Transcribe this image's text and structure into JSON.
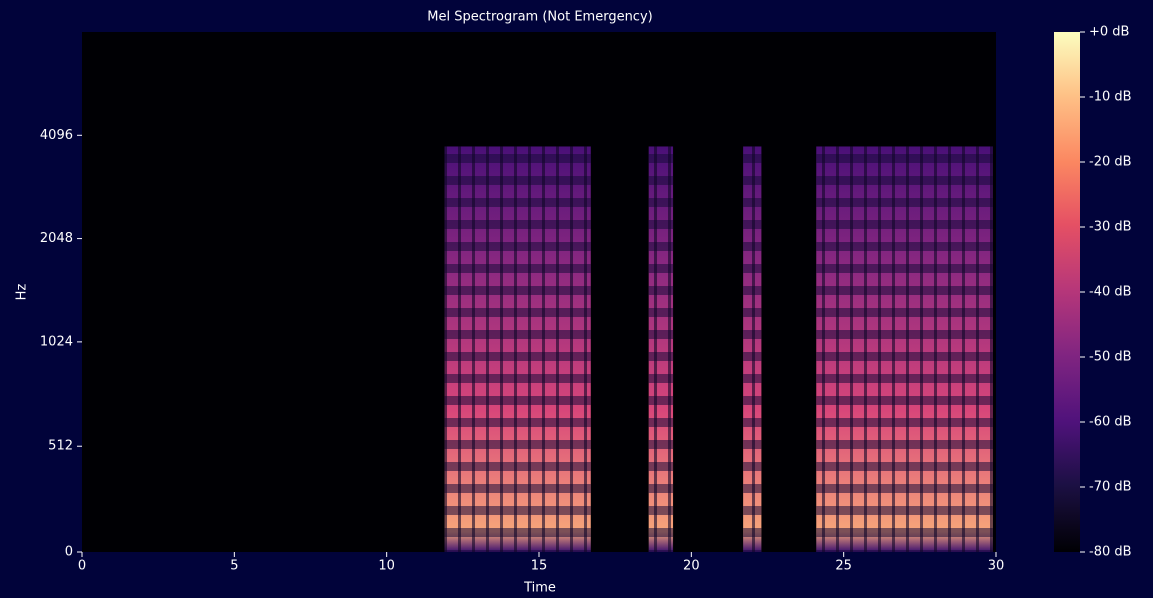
{
  "chart_data": {
    "type": "spectrogram",
    "title": "Mel Spectrogram (Not Emergency)",
    "xlabel": "Time",
    "ylabel": "Hz",
    "xlim": [
      0,
      30
    ],
    "xticks": [
      0,
      5,
      10,
      15,
      20,
      25,
      30
    ],
    "ylim": [
      0,
      8192
    ],
    "yticks": [
      0,
      512,
      1024,
      2048,
      4096
    ],
    "yscale": "symlog",
    "linthresh": 1000,
    "logbase": 2,
    "active_regions": [
      [
        11.9,
        16.7
      ],
      [
        18.6,
        19.4
      ],
      [
        21.7,
        22.3
      ],
      [
        24.1,
        29.9
      ]
    ],
    "region_top_hz": 3800,
    "colormap": "magma",
    "clim": [
      -80,
      0
    ],
    "cticks": [
      {
        "value": 0,
        "label": "+0 dB"
      },
      {
        "value": -10,
        "label": "-10 dB"
      },
      {
        "value": -20,
        "label": "-20 dB"
      },
      {
        "value": -30,
        "label": "-30 dB"
      },
      {
        "value": -40,
        "label": "-40 dB"
      },
      {
        "value": -50,
        "label": "-50 dB"
      },
      {
        "value": -60,
        "label": "-60 dB"
      },
      {
        "value": -70,
        "label": "-70 dB"
      },
      {
        "value": -80,
        "label": "-80 dB"
      }
    ]
  }
}
